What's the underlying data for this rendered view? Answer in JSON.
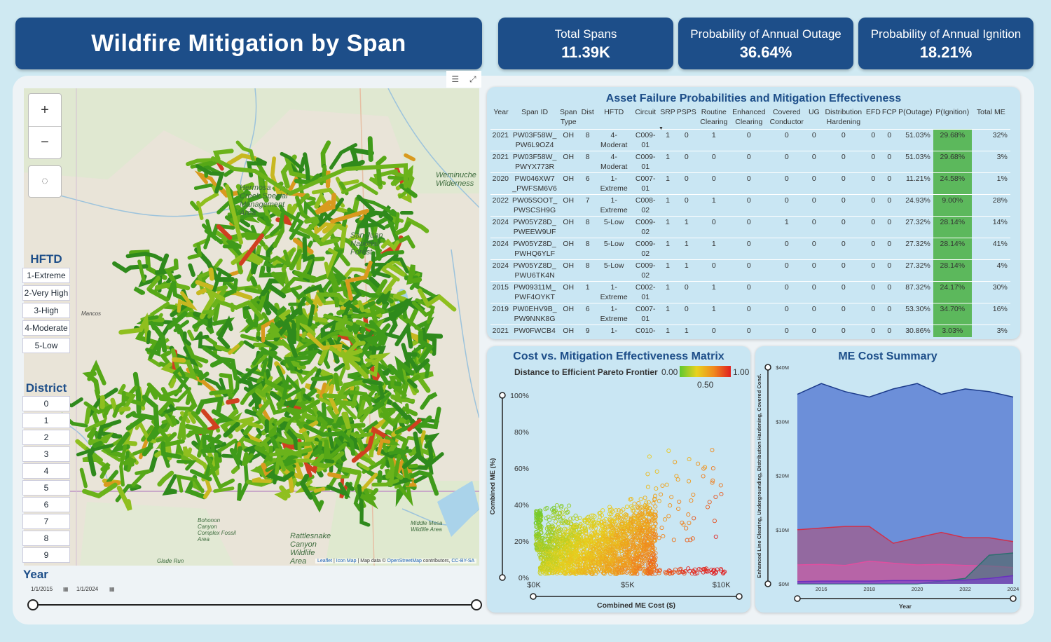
{
  "header": {
    "title": "Wildfire Mitigation by Span",
    "kpis": [
      {
        "label": "Total Spans",
        "value": "11.39K"
      },
      {
        "label": "Probability of Annual Outage",
        "value": "36.64%"
      },
      {
        "label": "Probability of Annual Ignition",
        "value": "18.21%"
      }
    ]
  },
  "map": {
    "zoom_in": "+",
    "zoom_out": "−",
    "places": [
      "Hermosa Creek Special Management Area",
      "Weminuche Wilderness",
      "San Juan National Forest",
      "Mancos",
      "Bohonon Canyon Complex Fossil Area",
      "Rattlesnake Canyon Wildlife Area",
      "Middle Mesa Wildlife Area",
      "Glade Run"
    ],
    "attribution": {
      "leaflet": "Leaflet",
      "icon_map": "Icon Map",
      "osm_prefix": "Map data ©",
      "osm": "OpenStreetMap",
      "contrib": "contributors,",
      "license": "CC-BY-SA"
    },
    "line_colors": [
      "#3f9b1a",
      "#56a817",
      "#6bb31b",
      "#2f8a1c",
      "#8fbf1f",
      "#c8b820",
      "#d99a1e",
      "#d04020"
    ]
  },
  "hftd": {
    "title": "HFTD",
    "items": [
      "1-Extreme",
      "2-Very High",
      "3-High",
      "4-Moderate",
      "5-Low"
    ]
  },
  "district": {
    "title": "District",
    "items": [
      "0",
      "1",
      "2",
      "3",
      "4",
      "5",
      "6",
      "7",
      "8",
      "9"
    ]
  },
  "year_slicer": {
    "title": "Year",
    "start": "1/1/2015",
    "end": "1/1/2024"
  },
  "table": {
    "title": "Asset Failure Probabilities and Mitigation Effectiveness",
    "columns": [
      "Year",
      "Span ID",
      "Span Type",
      "Dist",
      "HFTD",
      "Circuit",
      "SRP",
      "PSPS",
      "Routine Clearing",
      "Enhanced Clearing",
      "Covered Conductor",
      "UG",
      "Distribution Hardening",
      "EFD",
      "FCP",
      "P(Outage)",
      "P(Ignition)",
      "Total ME"
    ],
    "rows": [
      [
        "2021",
        "PW03F58W_ PW6L9OZ4",
        "OH",
        "8",
        "4- Moderat",
        "C009- 01",
        "1",
        "0",
        "1",
        "0",
        "0",
        "0",
        "0",
        "0",
        "0",
        "51.03%",
        "29.68%",
        "32%"
      ],
      [
        "2021",
        "PW03F58W_ PWYX773R",
        "OH",
        "8",
        "4- Moderat",
        "C009- 01",
        "1",
        "0",
        "0",
        "0",
        "0",
        "0",
        "0",
        "0",
        "0",
        "51.03%",
        "29.68%",
        "3%"
      ],
      [
        "2020",
        "PW046XW7 _PWFSM6V6",
        "OH",
        "6",
        "1- Extreme",
        "C007- 01",
        "1",
        "0",
        "0",
        "0",
        "0",
        "0",
        "0",
        "0",
        "0",
        "11.21%",
        "24.58%",
        "1%"
      ],
      [
        "2022",
        "PW05SOOT_ PWSCSH9G",
        "OH",
        "7",
        "1- Extreme",
        "C008- 02",
        "1",
        "0",
        "1",
        "0",
        "0",
        "0",
        "0",
        "0",
        "0",
        "24.93%",
        "9.00%",
        "28%"
      ],
      [
        "2024",
        "PW05YZ8D_ PWEEW9UF",
        "OH",
        "8",
        "5-Low",
        "C009- 02",
        "1",
        "1",
        "0",
        "0",
        "1",
        "0",
        "0",
        "0",
        "0",
        "27.32%",
        "28.14%",
        "14%"
      ],
      [
        "2024",
        "PW05YZ8D_ PWHQ6YLF",
        "OH",
        "8",
        "5-Low",
        "C009- 02",
        "1",
        "1",
        "1",
        "0",
        "0",
        "0",
        "0",
        "0",
        "0",
        "27.32%",
        "28.14%",
        "41%"
      ],
      [
        "2024",
        "PW05YZ8D_ PWU6TK4N",
        "OH",
        "8",
        "5-Low",
        "C009- 02",
        "1",
        "1",
        "0",
        "0",
        "0",
        "0",
        "0",
        "0",
        "0",
        "27.32%",
        "28.14%",
        "4%"
      ],
      [
        "2015",
        "PW09311M_ PWF4OYKT",
        "OH",
        "1",
        "1- Extreme",
        "C002- 01",
        "1",
        "0",
        "1",
        "0",
        "0",
        "0",
        "0",
        "0",
        "0",
        "87.32%",
        "24.17%",
        "30%"
      ],
      [
        "2019",
        "PW0EHV9B_ PW9NNK8G",
        "OH",
        "6",
        "1- Extreme",
        "C007- 01",
        "1",
        "0",
        "1",
        "0",
        "0",
        "0",
        "0",
        "0",
        "0",
        "53.30%",
        "34.70%",
        "16%"
      ],
      [
        "2021",
        "PW0FWCB4 _PWBWE987",
        "OH",
        "9",
        "1- Extreme",
        "C010- 01",
        "1",
        "1",
        "0",
        "0",
        "0",
        "0",
        "0",
        "0",
        "0",
        "30.86%",
        "3.03%",
        "3%"
      ]
    ]
  },
  "scatter": {
    "title": "Cost vs. Mitigation Effectiveness Matrix",
    "legend_title": "Distance to Efficient Pareto Frontier",
    "legend_min": "0.00",
    "legend_mid": "0.50",
    "legend_max": "1.00",
    "ylabel": "Combined ME (%)",
    "xlabel": "Combined ME Cost ($)",
    "yticks": [
      "100%",
      "80%",
      "60%",
      "40%",
      "20%",
      "0%"
    ],
    "xticks": [
      "$0K",
      "$5K",
      "$10K"
    ]
  },
  "area": {
    "title": "ME Cost Summary",
    "ylabel": "Enhanced Line Clearing, Undergrounding, Distribution Hardening, Covered Cond.",
    "xlabel": "Year",
    "yticks": [
      "$40M",
      "$30M",
      "$20M",
      "$10M",
      "$0M"
    ],
    "xticks": [
      "2016",
      "2018",
      "2020",
      "2022",
      "2024"
    ]
  },
  "chart_data": [
    {
      "type": "scatter",
      "title": "Cost vs. Mitigation Effectiveness Matrix",
      "xlabel": "Combined ME Cost ($)",
      "ylabel": "Combined ME (%)",
      "xlim": [
        0,
        10500
      ],
      "ylim": [
        0,
        100
      ],
      "note_series": [
        {
          "name": "cluster",
          "x_range": [
            0,
            10200
          ],
          "y_range": [
            0,
            70
          ]
        }
      ]
    },
    {
      "type": "area",
      "title": "ME Cost Summary",
      "xlabel": "Year",
      "x": [
        2015,
        2016,
        2017,
        2018,
        2019,
        2020,
        2021,
        2022,
        2023,
        2024
      ],
      "ylim": [
        0,
        40
      ],
      "series": [
        {
          "values": [
            35,
            37,
            35.5,
            34.5,
            36,
            37,
            35,
            36,
            35.5,
            34.5
          ],
          "color": "#2f55c8"
        },
        {
          "values": [
            10,
            10.3,
            10.6,
            10.6,
            7.5,
            8.5,
            9.5,
            8.5,
            8.5,
            7.8
          ],
          "color": "#c33b5a"
        },
        {
          "values": [
            3.5,
            3.6,
            3.4,
            4.2,
            3.8,
            3.5,
            3.6,
            3.4,
            3.3,
            3.0
          ],
          "color": "#e45fb0"
        },
        {
          "values": [
            0,
            0,
            0,
            0,
            0,
            0,
            0.5,
            1.0,
            5.3,
            5.7
          ],
          "color": "#2d7a7a"
        },
        {
          "values": [
            0.4,
            0.5,
            0.5,
            0.5,
            0.6,
            0.6,
            0.6,
            0.7,
            1.0,
            1.5
          ],
          "color": "#7a3fd0"
        }
      ]
    }
  ]
}
